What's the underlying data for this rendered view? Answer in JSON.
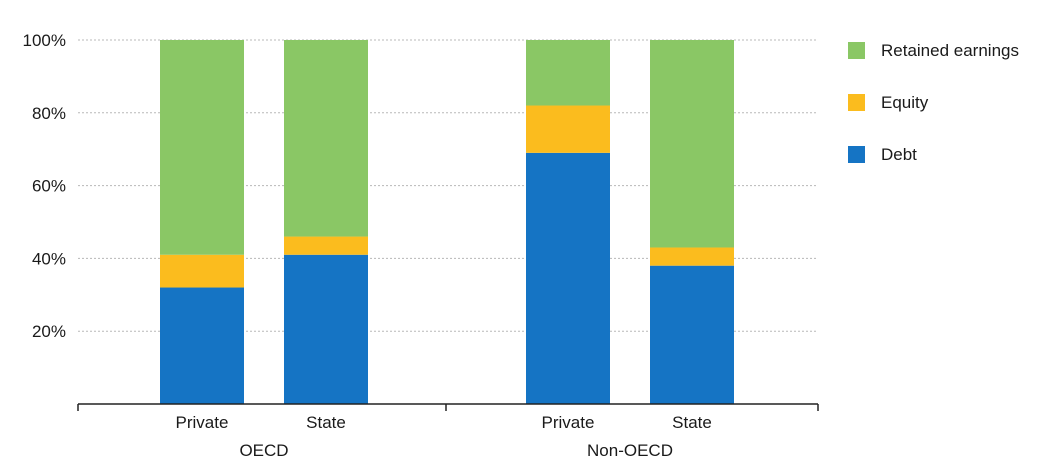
{
  "chart_data": {
    "type": "bar",
    "stacked": true,
    "title": "",
    "xlabel": "",
    "ylabel": "",
    "ylim": [
      0,
      100
    ],
    "yticks": [
      "20%",
      "40%",
      "60%",
      "80%",
      "100%"
    ],
    "ytick_values": [
      20,
      40,
      60,
      80,
      100
    ],
    "grid": true,
    "legend_position": "right",
    "groups": [
      "OECD",
      "Non-OECD"
    ],
    "categories": [
      "Private",
      "State",
      "Private",
      "State"
    ],
    "category_group": [
      0,
      0,
      1,
      1
    ],
    "series": [
      {
        "name": "Debt",
        "color": "#1574c4",
        "values": [
          32,
          41,
          69,
          38
        ]
      },
      {
        "name": "Equity",
        "color": "#fbbc1e",
        "values": [
          9,
          5,
          13,
          5
        ]
      },
      {
        "name": "Retained earnings",
        "color": "#8ac765",
        "values": [
          59,
          54,
          18,
          57
        ]
      }
    ],
    "legend_order": [
      "Retained earnings",
      "Equity",
      "Debt"
    ]
  }
}
